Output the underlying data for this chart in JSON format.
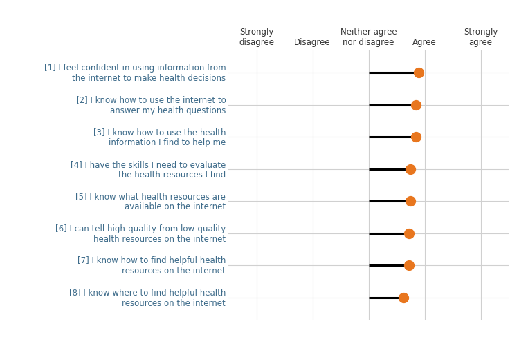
{
  "categories": [
    "[1] I feel confident in using information from\nthe internet to make health decisions",
    "[2] I know how to use the internet to\nanswer my health questions",
    "[3] I know how to use the health\ninformation I find to help me",
    "[4] I have the skills I need to evaluate\nthe health resources I find",
    "[5] I know what health resources are\navailable on the internet",
    "[6] I can tell high-quality from low-quality\nhealth resources on the internet",
    "[7] I know how to find helpful health\nresources on the internet",
    "[8] I know where to find helpful health\nresources on the internet"
  ],
  "x_labels": [
    "Strongly\ndisagree",
    "Disagree",
    "Neither agree\nnor disagree",
    "Agree",
    "Strongly\nagree"
  ],
  "x_positions": [
    1,
    2,
    3,
    4,
    5
  ],
  "dot_values": [
    3.9,
    3.85,
    3.85,
    3.75,
    3.75,
    3.72,
    3.72,
    3.62
  ],
  "line_start": [
    3.0,
    3.0,
    3.0,
    3.0,
    3.0,
    3.0,
    3.0,
    3.0
  ],
  "dot_color": "#E8761E",
  "line_color": "#000000",
  "background_color": "#ffffff",
  "text_color": "#4a6741",
  "label_color": "#3d6b8a",
  "grid_color": "#d0d0d0",
  "dot_size": 100,
  "line_width": 2.2,
  "fontsize_labels": 8.5,
  "fontsize_ylabel": 8.5
}
